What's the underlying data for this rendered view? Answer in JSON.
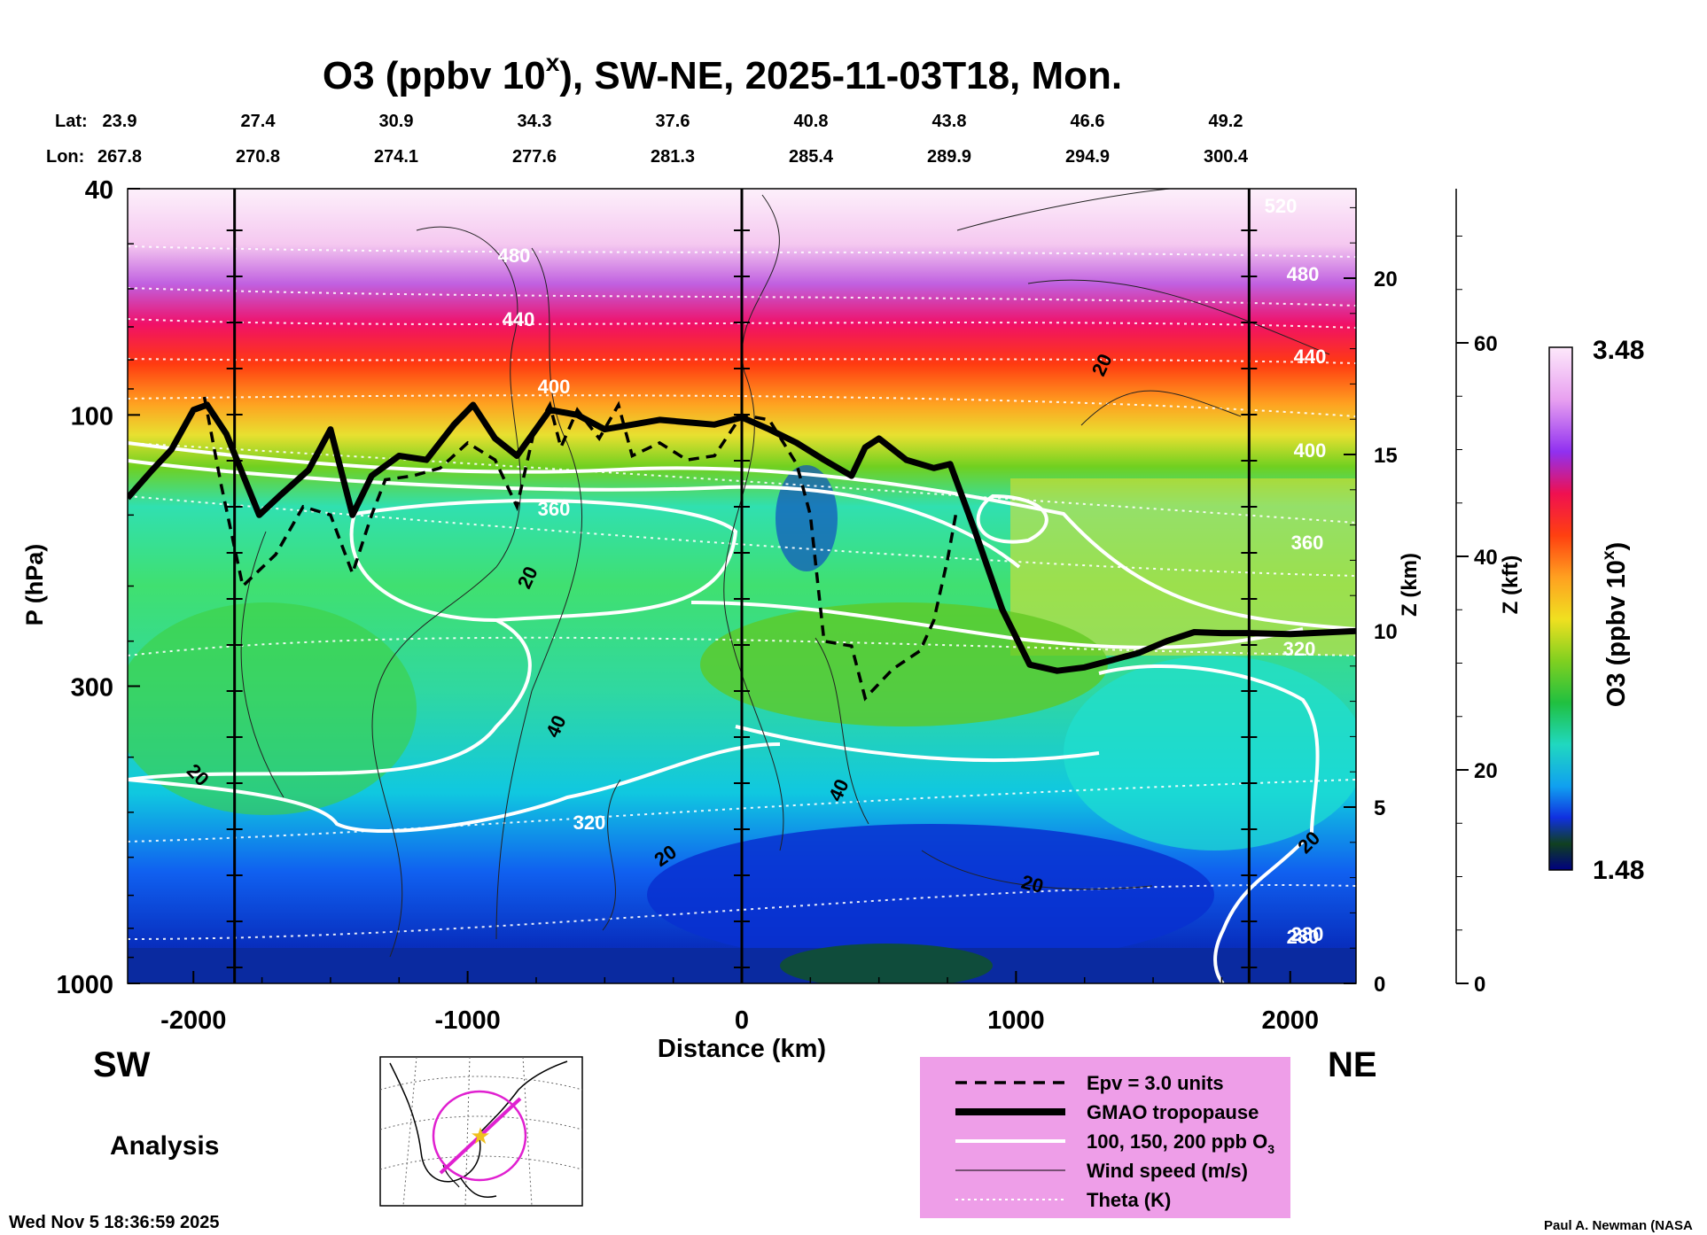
{
  "chart_data": {
    "type": "heatmap",
    "title": "O3 (ppbv 10",
    "title_sup": "x",
    "title_suffix": "), SW-NE, 2025-11-03T18, Mon.",
    "xlabel": "Distance (km)",
    "ylabel": "P (hPa)",
    "right_axis1_label": "Z (km)",
    "right_axis2_label": "Z (kft)",
    "x_range": [
      -2240,
      2240
    ],
    "x_ticks": [
      -2000,
      -1000,
      0,
      1000,
      2000
    ],
    "x_tick_labels": [
      "-2000",
      "-1000",
      "0",
      "1000",
      "2000"
    ],
    "y_range_hpa": [
      1000,
      40
    ],
    "y_ticks_hpa": [
      40,
      100,
      300,
      1000
    ],
    "y_tick_labels": [
      "40",
      "100",
      "300",
      "1000"
    ],
    "z_km_ticks": [
      0,
      5,
      10,
      15,
      20
    ],
    "z_km_tick_labels": [
      "0",
      "5",
      "10",
      "15",
      "20"
    ],
    "z_kft_ticks": [
      0,
      20,
      40,
      60
    ],
    "z_kft_tick_labels": [
      "0",
      "20",
      "40",
      "60"
    ],
    "lat_label": "Lat:",
    "lon_label": "Lon:",
    "cross_section_points": [
      {
        "dist": -2240,
        "lat": "23.9",
        "lon": "267.8"
      },
      {
        "dist": -1740,
        "lat": "27.4",
        "lon": "270.8"
      },
      {
        "dist": -1240,
        "lat": "30.9",
        "lon": "274.1"
      },
      {
        "dist": -740,
        "lat": "34.3",
        "lon": "277.6"
      },
      {
        "dist": -240,
        "lat": "37.6",
        "lon": "281.3"
      },
      {
        "dist": 260,
        "lat": "40.8",
        "lon": "285.4"
      },
      {
        "dist": 760,
        "lat": "43.8",
        "lon": "289.9"
      },
      {
        "dist": 1260,
        "lat": "46.6",
        "lon": "294.9"
      },
      {
        "dist": 1760,
        "lat": "49.2",
        "lon": "300.4"
      }
    ],
    "vertical_marker_lines_km": [
      -1850,
      0,
      1850
    ],
    "colorbar": {
      "label": "O3 (ppbv 10",
      "label_sup": "x",
      "label_suffix": ")",
      "min_label": "1.48",
      "max_label": "3.48",
      "min": 1.48,
      "max": 3.48
    },
    "theta_labels": [
      "480",
      "440",
      "400",
      "360",
      "320",
      "280",
      "520",
      "480",
      "440",
      "400",
      "360",
      "320",
      "280"
    ],
    "wind_labels": [
      "20",
      "20",
      "40",
      "20",
      "20",
      "40",
      "20",
      "20"
    ],
    "tropopause_hpa": [
      [
        -2240,
        140
      ],
      [
        -2150,
        125
      ],
      [
        -2080,
        115
      ],
      [
        -2000,
        98
      ],
      [
        -1950,
        96
      ],
      [
        -1880,
        108
      ],
      [
        -1760,
        150
      ],
      [
        -1680,
        138
      ],
      [
        -1580,
        125
      ],
      [
        -1500,
        106
      ],
      [
        -1420,
        150
      ],
      [
        -1350,
        128
      ],
      [
        -1250,
        118
      ],
      [
        -1150,
        120
      ],
      [
        -1050,
        104
      ],
      [
        -980,
        96
      ],
      [
        -900,
        110
      ],
      [
        -820,
        118
      ],
      [
        -700,
        98
      ],
      [
        -600,
        100
      ],
      [
        -500,
        106
      ],
      [
        -400,
        104
      ],
      [
        -300,
        102
      ],
      [
        -200,
        103
      ],
      [
        -100,
        104
      ],
      [
        0,
        101
      ],
      [
        100,
        106
      ],
      [
        200,
        112
      ],
      [
        300,
        120
      ],
      [
        400,
        128
      ],
      [
        450,
        114
      ],
      [
        500,
        110
      ],
      [
        600,
        120
      ],
      [
        700,
        124
      ],
      [
        760,
        122
      ],
      [
        850,
        160
      ],
      [
        950,
        220
      ],
      [
        1050,
        275
      ],
      [
        1150,
        282
      ],
      [
        1250,
        278
      ],
      [
        1350,
        270
      ],
      [
        1450,
        262
      ],
      [
        1550,
        250
      ],
      [
        1650,
        241
      ],
      [
        1750,
        242
      ],
      [
        1850,
        242
      ],
      [
        2000,
        243
      ],
      [
        2240,
        240
      ]
    ],
    "epv_line_hpa": [
      [
        -1960,
        93
      ],
      [
        -1900,
        132
      ],
      [
        -1820,
        200
      ],
      [
        -1700,
        176
      ],
      [
        -1600,
        145
      ],
      [
        -1500,
        150
      ],
      [
        -1420,
        190
      ],
      [
        -1350,
        150
      ],
      [
        -1300,
        130
      ],
      [
        -1200,
        128
      ],
      [
        -1100,
        124
      ],
      [
        -1000,
        112
      ],
      [
        -900,
        120
      ],
      [
        -820,
        145
      ],
      [
        -760,
        108
      ],
      [
        -700,
        96
      ],
      [
        -660,
        114
      ],
      [
        -600,
        98
      ],
      [
        -520,
        110
      ],
      [
        -450,
        96
      ],
      [
        -400,
        118
      ],
      [
        -300,
        112
      ],
      [
        -200,
        120
      ],
      [
        -100,
        118
      ],
      [
        0,
        100
      ],
      [
        100,
        102
      ],
      [
        200,
        122
      ],
      [
        250,
        150
      ],
      [
        300,
        250
      ],
      [
        400,
        255
      ],
      [
        450,
        315
      ],
      [
        550,
        280
      ],
      [
        650,
        260
      ],
      [
        700,
        230
      ],
      [
        750,
        180
      ],
      [
        780,
        150
      ]
    ],
    "legend": [
      {
        "label": "Epv = 3.0 units",
        "style": "dashed"
      },
      {
        "label": "GMAO tropopause",
        "style": "thick"
      },
      {
        "label": "100, 150, 200 ppb O",
        "sub": "3",
        "style": "white"
      },
      {
        "label": "Wind speed (m/s)",
        "style": "thin"
      },
      {
        "label": "Theta (K)",
        "style": "dotted"
      }
    ]
  },
  "footer": {
    "left_direction": "SW",
    "right_direction": "NE",
    "analysis_label": "Analysis",
    "timestamp": "Wed Nov  5 18:36:59 2025",
    "credit": "Paul A. Newman (NASA"
  },
  "colors": {
    "legend_bg": "#ee9ee8",
    "map_path": "#e020d0",
    "star": "#f0c020"
  }
}
